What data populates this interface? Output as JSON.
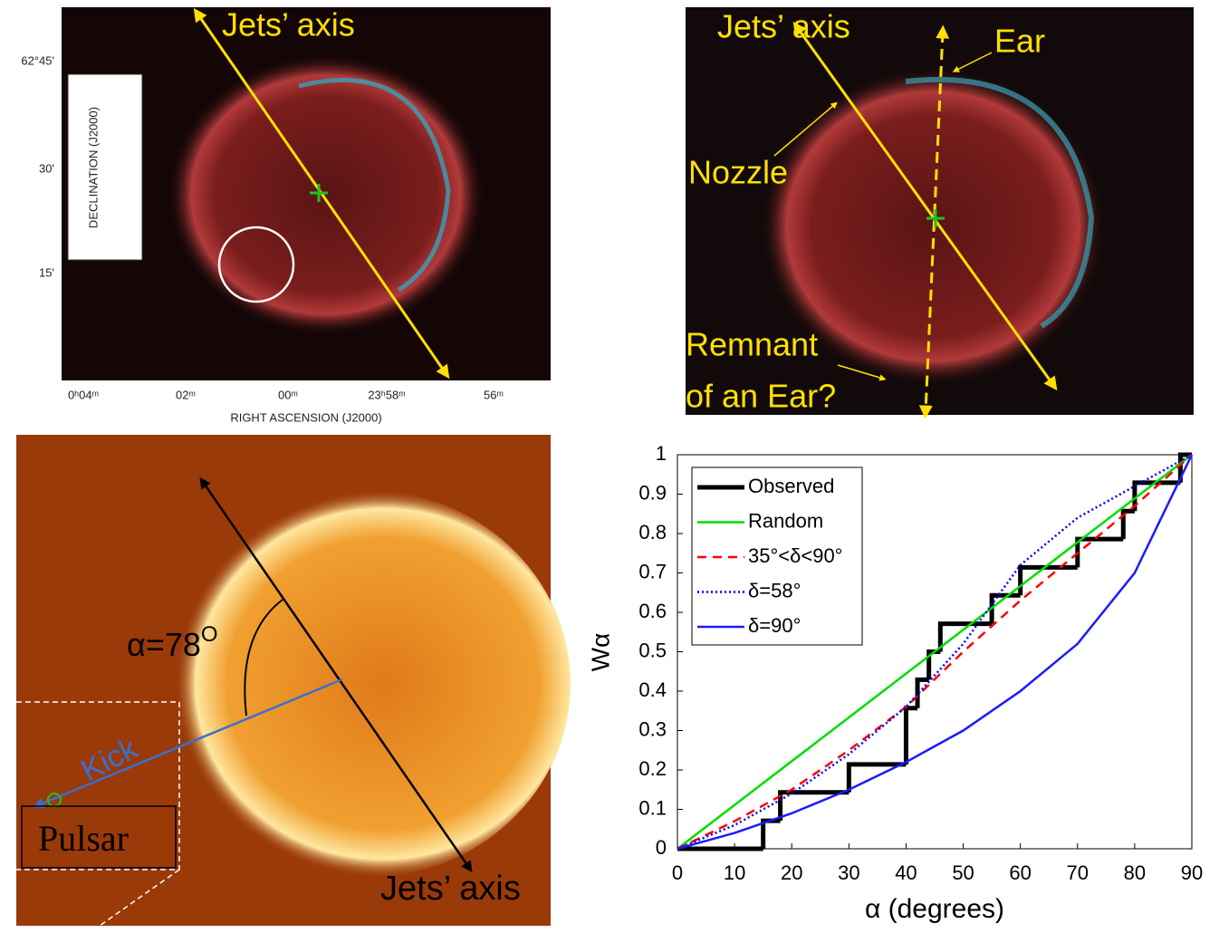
{
  "panels": [
    {
      "annotation": "Jets’ axis",
      "y_ticks": [
        "62°45'",
        "30'",
        "15'"
      ],
      "x_ticks": [
        "0ʰ04ᵐ",
        "02ᵐ",
        "00ᵐ",
        "23ʰ58ᵐ",
        "56ᵐ"
      ],
      "ylabel": "DECLINATION (J2000)",
      "xlabel": "RIGHT ASCENSION (J2000)"
    },
    {
      "annotations": [
        "Jets’ axis",
        "Ear",
        "Nozzle",
        "Remnant",
        "of an Ear?"
      ]
    },
    {
      "angle_label": "α=78",
      "angle_sup": "O",
      "kick": "Kick",
      "pulsar": "Pulsar",
      "annotation": "Jets’ axis"
    }
  ],
  "chart_data": {
    "type": "line",
    "xlabel": "α (degrees)",
    "ylabel": "Wα",
    "xlim": [
      0,
      90
    ],
    "ylim": [
      0,
      1
    ],
    "xticks": [
      0,
      10,
      20,
      30,
      40,
      50,
      60,
      70,
      80,
      90
    ],
    "yticks": [
      0,
      0.1,
      0.2,
      0.3,
      0.4,
      0.5,
      0.6,
      0.7,
      0.8,
      0.9,
      1
    ],
    "legend": "upper left",
    "series": [
      {
        "name": "Observed",
        "color": "#000000",
        "style": "solid",
        "width": 5,
        "drawstyle": "steps-post",
        "x": [
          0,
          15,
          18,
          30,
          40,
          42,
          44,
          46,
          55,
          60,
          70,
          78,
          80,
          88,
          90
        ],
        "values": [
          0,
          0.071,
          0.143,
          0.214,
          0.357,
          0.429,
          0.5,
          0.571,
          0.643,
          0.714,
          0.786,
          0.857,
          0.929,
          1,
          1
        ]
      },
      {
        "name": "Random",
        "color": "#00dd00",
        "style": "solid",
        "width": 2.5,
        "x": [
          0,
          90
        ],
        "values": [
          0,
          1
        ]
      },
      {
        "name": "35°<δ<90°",
        "color": "#ff0000",
        "style": "dashed",
        "width": 2.5,
        "x": [
          0,
          10,
          20,
          30,
          40,
          50,
          60,
          70,
          80,
          90
        ],
        "values": [
          0,
          0.07,
          0.15,
          0.25,
          0.36,
          0.5,
          0.63,
          0.75,
          0.87,
          1
        ]
      },
      {
        "name": "δ=58°",
        "color": "#0000ff",
        "style": "dotted",
        "width": 2.5,
        "x": [
          0,
          10,
          20,
          30,
          40,
          50,
          55,
          60,
          70,
          80,
          90
        ],
        "values": [
          0,
          0.06,
          0.14,
          0.24,
          0.36,
          0.52,
          0.62,
          0.72,
          0.84,
          0.92,
          1
        ]
      },
      {
        "name": "δ=90°",
        "color": "#1a1aff",
        "style": "solid",
        "width": 2.5,
        "x": [
          0,
          10,
          20,
          30,
          40,
          50,
          60,
          70,
          80,
          90
        ],
        "values": [
          0,
          0.04,
          0.09,
          0.15,
          0.22,
          0.3,
          0.4,
          0.52,
          0.7,
          1
        ]
      }
    ]
  }
}
